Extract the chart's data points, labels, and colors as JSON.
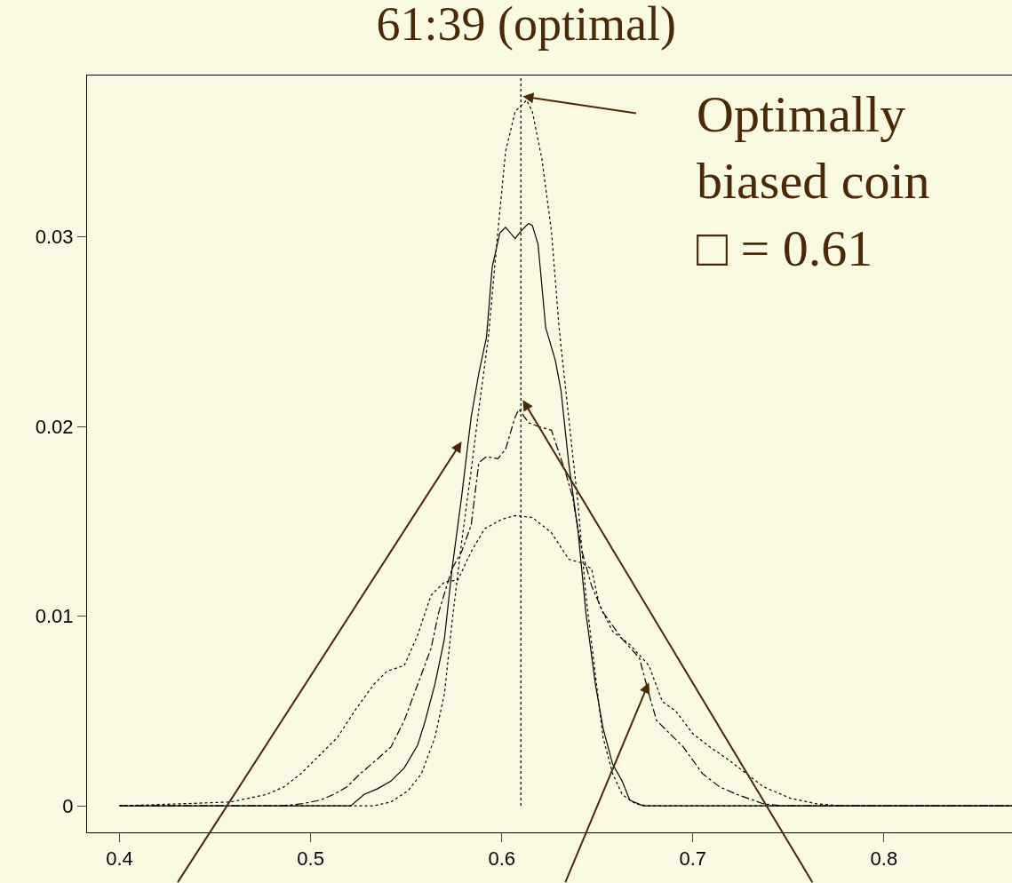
{
  "chart_data": {
    "type": "line",
    "title": "61:39 (optimal)",
    "annotations": [
      {
        "text": "Optimally\nbiased coin\n□ = 0.61",
        "x": 0.611,
        "y": 0.0374
      }
    ],
    "xlim": [
      0.383,
      0.867
    ],
    "xticks": [
      0.4,
      0.5,
      0.6,
      0.7,
      0.8
    ],
    "ylim": [
      -0.0014,
      0.0385
    ],
    "yticks": [
      0,
      0.01,
      0.02,
      0.03
    ],
    "grid": false,
    "marker": "none",
    "ref_lines": [
      {
        "axis": "x",
        "value": 0.61,
        "color": "#000000",
        "line_style": "dotted"
      }
    ],
    "series": [
      {
        "color": "#000000",
        "line_style": "solid",
        "x": [
          0.4,
          0.521,
          0.528,
          0.535,
          0.542,
          0.549,
          0.556,
          0.56,
          0.565,
          0.57,
          0.574,
          0.579,
          0.584,
          0.588,
          0.592,
          0.595,
          0.599,
          0.602,
          0.607,
          0.61,
          0.614,
          0.616,
          0.619,
          0.623,
          0.628,
          0.631,
          0.635,
          0.64,
          0.644,
          0.649,
          0.653,
          0.658,
          0.663,
          0.667,
          0.674,
          0.867
        ],
        "values": [
          0,
          0,
          0.0006,
          0.0009,
          0.0013,
          0.002,
          0.0032,
          0.0045,
          0.0064,
          0.0088,
          0.0125,
          0.0163,
          0.0205,
          0.0228,
          0.0247,
          0.0284,
          0.0302,
          0.0305,
          0.0299,
          0.0303,
          0.0307,
          0.0306,
          0.0296,
          0.0252,
          0.0235,
          0.0219,
          0.0181,
          0.0144,
          0.0102,
          0.0064,
          0.0041,
          0.0022,
          0.0013,
          0.0003,
          0,
          0
        ]
      },
      {
        "color": "#000000",
        "line_style": "dotted",
        "x": [
          0.4,
          0.533,
          0.542,
          0.551,
          0.558,
          0.565,
          0.57,
          0.574,
          0.579,
          0.584,
          0.588,
          0.593,
          0.598,
          0.602,
          0.607,
          0.613,
          0.616,
          0.621,
          0.626,
          0.63,
          0.635,
          0.64,
          0.644,
          0.649,
          0.653,
          0.658,
          0.663,
          0.67,
          0.677,
          0.867
        ],
        "values": [
          0,
          0,
          0.0002,
          0.0008,
          0.0017,
          0.0036,
          0.0059,
          0.0097,
          0.0139,
          0.0177,
          0.0209,
          0.0247,
          0.0303,
          0.0345,
          0.0366,
          0.0372,
          0.0366,
          0.0341,
          0.0303,
          0.0252,
          0.0205,
          0.0158,
          0.0111,
          0.0069,
          0.0036,
          0.0017,
          0.0006,
          0.0001,
          0,
          0
        ]
      },
      {
        "color": "#000000",
        "line_style": "dashed",
        "x": [
          0.4,
          0.484,
          0.495,
          0.505,
          0.512,
          0.519,
          0.526,
          0.533,
          0.542,
          0.549,
          0.556,
          0.563,
          0.567,
          0.574,
          0.579,
          0.584,
          0.588,
          0.592,
          0.598,
          0.602,
          0.607,
          0.609,
          0.614,
          0.619,
          0.626,
          0.633,
          0.637,
          0.642,
          0.647,
          0.653,
          0.663,
          0.672,
          0.677,
          0.681,
          0.688,
          0.695,
          0.705,
          0.714,
          0.723,
          0.737,
          0.747,
          0.867
        ],
        "values": [
          0,
          0,
          0.0001,
          0.0003,
          0.0006,
          0.001,
          0.0017,
          0.0023,
          0.0031,
          0.0045,
          0.0064,
          0.0083,
          0.0102,
          0.0125,
          0.0134,
          0.0148,
          0.0181,
          0.0184,
          0.0183,
          0.0188,
          0.0205,
          0.0209,
          0.0202,
          0.02,
          0.0198,
          0.0177,
          0.0163,
          0.0134,
          0.0116,
          0.0102,
          0.0088,
          0.0078,
          0.0059,
          0.0045,
          0.0038,
          0.0031,
          0.0017,
          0.001,
          0.0006,
          0.0001,
          0,
          0
        ]
      },
      {
        "color": "#000000",
        "line_style": "dotted",
        "x": [
          0.4,
          0.43,
          0.458,
          0.477,
          0.486,
          0.495,
          0.505,
          0.514,
          0.523,
          0.533,
          0.54,
          0.549,
          0.556,
          0.563,
          0.57,
          0.577,
          0.584,
          0.591,
          0.6,
          0.607,
          0.616,
          0.626,
          0.635,
          0.642,
          0.647,
          0.651,
          0.658,
          0.667,
          0.677,
          0.684,
          0.691,
          0.7,
          0.709,
          0.719,
          0.728,
          0.737,
          0.751,
          0.765,
          0.779,
          0.867
        ],
        "values": [
          0,
          0.0001,
          0.0002,
          0.0006,
          0.001,
          0.0017,
          0.0027,
          0.0036,
          0.005,
          0.0064,
          0.0071,
          0.0074,
          0.009,
          0.0111,
          0.0118,
          0.0119,
          0.0134,
          0.0146,
          0.0151,
          0.0153,
          0.0152,
          0.0144,
          0.013,
          0.0128,
          0.0125,
          0.0106,
          0.0092,
          0.0085,
          0.0074,
          0.0055,
          0.005,
          0.0038,
          0.0031,
          0.0024,
          0.0017,
          0.001,
          0.0004,
          0.0001,
          0,
          0
        ]
      }
    ]
  }
}
